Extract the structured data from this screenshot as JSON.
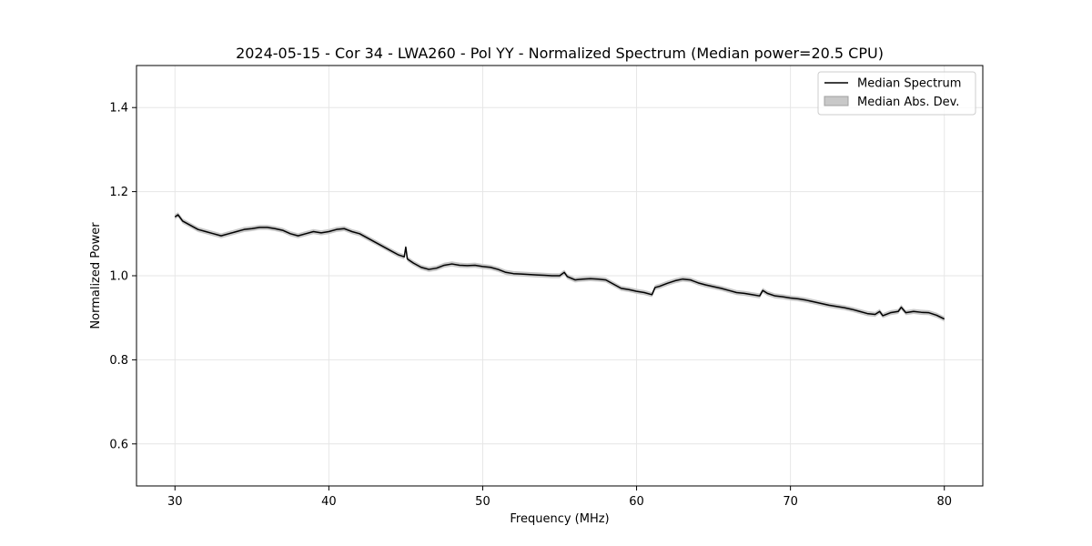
{
  "chart_data": {
    "type": "line",
    "title": "2024-05-15 - Cor 34 - LWA260 - Pol YY - Normalized Spectrum (Median power=20.5 CPU)",
    "xlabel": "Frequency (MHz)",
    "ylabel": "Normalized Power",
    "xlim": [
      27.5,
      82.5
    ],
    "ylim": [
      0.5,
      1.5
    ],
    "xticks": [
      30,
      40,
      50,
      60,
      70,
      80
    ],
    "yticks": [
      0.6,
      0.8,
      1.0,
      1.2,
      1.4
    ],
    "xtick_labels": [
      "30",
      "40",
      "50",
      "60",
      "70",
      "80"
    ],
    "ytick_labels": [
      "0.6",
      "0.8",
      "1.0",
      "1.2",
      "1.4"
    ],
    "grid": true,
    "legend_position": "top-right",
    "legend": {
      "line_label": "Median Spectrum",
      "band_label": "Median Abs. Dev."
    },
    "colors": {
      "line": "#000000",
      "band": "#c8c8c8",
      "grid": "#e6e6e6"
    },
    "band_halfwidth": 0.006,
    "series": [
      {
        "name": "Median Spectrum",
        "x": [
          30,
          30.2,
          30.5,
          31,
          31.5,
          32,
          32.5,
          33,
          33.5,
          34,
          34.5,
          35,
          35.5,
          36,
          36.5,
          37,
          37.5,
          38,
          38.5,
          39,
          39.5,
          40,
          40.5,
          41,
          41.5,
          42,
          42.5,
          43,
          43.5,
          44,
          44.5,
          44.9,
          45.0,
          45.1,
          45.3,
          45.5,
          46,
          46.5,
          47,
          47.5,
          48,
          48.5,
          49,
          49.5,
          50,
          50.5,
          51,
          51.5,
          52,
          52.5,
          53,
          53.5,
          54,
          54.5,
          55,
          55.3,
          55.5,
          56,
          56.5,
          57,
          57.5,
          58,
          58.5,
          59,
          59.5,
          60,
          60.5,
          61,
          61.2,
          61.5,
          62,
          62.5,
          63,
          63.5,
          64,
          64.5,
          65,
          65.5,
          66,
          66.5,
          67,
          67.5,
          68,
          68.2,
          68.5,
          69,
          69.5,
          70,
          70.5,
          71,
          71.5,
          72,
          72.5,
          73,
          73.5,
          74,
          74.5,
          75,
          75.5,
          75.8,
          76,
          76.5,
          77,
          77.2,
          77.5,
          78,
          78.5,
          79,
          79.5,
          80
        ],
        "values": [
          1.14,
          1.145,
          1.13,
          1.12,
          1.11,
          1.105,
          1.1,
          1.095,
          1.1,
          1.105,
          1.11,
          1.112,
          1.115,
          1.115,
          1.112,
          1.108,
          1.1,
          1.095,
          1.1,
          1.105,
          1.102,
          1.105,
          1.11,
          1.112,
          1.105,
          1.1,
          1.09,
          1.08,
          1.07,
          1.06,
          1.05,
          1.045,
          1.068,
          1.04,
          1.035,
          1.03,
          1.02,
          1.015,
          1.018,
          1.025,
          1.028,
          1.025,
          1.024,
          1.025,
          1.022,
          1.02,
          1.015,
          1.008,
          1.005,
          1.004,
          1.003,
          1.002,
          1.001,
          1.0,
          1.0,
          1.008,
          0.998,
          0.99,
          0.992,
          0.993,
          0.992,
          0.99,
          0.98,
          0.97,
          0.967,
          0.963,
          0.96,
          0.955,
          0.972,
          0.975,
          0.982,
          0.988,
          0.992,
          0.99,
          0.983,
          0.978,
          0.974,
          0.97,
          0.965,
          0.96,
          0.958,
          0.955,
          0.952,
          0.965,
          0.958,
          0.952,
          0.95,
          0.947,
          0.945,
          0.942,
          0.938,
          0.934,
          0.93,
          0.927,
          0.924,
          0.92,
          0.915,
          0.91,
          0.908,
          0.915,
          0.905,
          0.912,
          0.915,
          0.925,
          0.912,
          0.915,
          0.913,
          0.912,
          0.906,
          0.897
        ]
      }
    ]
  }
}
